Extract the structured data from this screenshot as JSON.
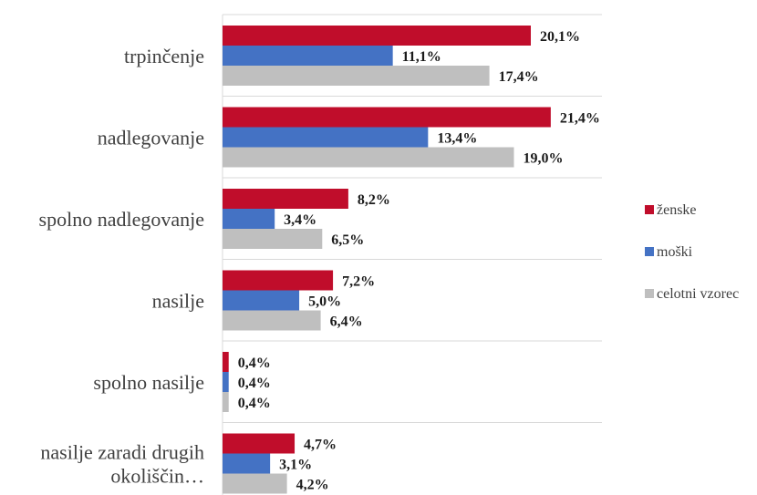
{
  "chart_data": {
    "type": "bar",
    "orientation": "horizontal",
    "categories": [
      "trpinčenje",
      "nadlegovanje",
      "spolno nadlegovanje",
      "nasilje",
      "spolno nasilje",
      "nasilje zaradi drugih okoliščin…"
    ],
    "series": [
      {
        "name": "ženske",
        "color": "#C00D2B",
        "values": [
          20.1,
          21.4,
          8.2,
          7.2,
          0.4,
          4.7
        ],
        "labels": [
          "20,1%",
          "21,4%",
          "8,2%",
          "7,2%",
          "0,4%",
          "4,7%"
        ]
      },
      {
        "name": "moški",
        "color": "#4472C4",
        "values": [
          11.1,
          13.4,
          3.4,
          5.0,
          0.4,
          3.1
        ],
        "labels": [
          "11,1%",
          "13,4%",
          "3,4%",
          "5,0%",
          "0,4%",
          "3,1%"
        ]
      },
      {
        "name": "celotni vzorec",
        "color": "#BFBFBF",
        "values": [
          17.4,
          19.0,
          6.5,
          6.4,
          0.4,
          4.2
        ],
        "labels": [
          "17,4%",
          "19,0%",
          "6,5%",
          "6,4%",
          "0,4%",
          "4,2%"
        ]
      }
    ],
    "unit": "%",
    "xlim": [
      0,
      25
    ],
    "grid": "horizontal separators between categories",
    "legend_position": "right"
  }
}
